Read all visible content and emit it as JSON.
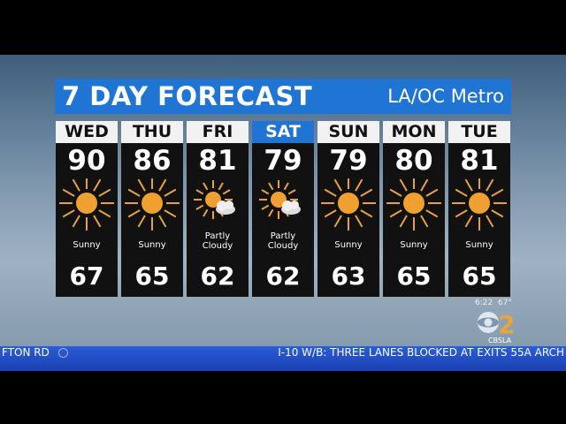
{
  "header": {
    "title": "7 DAY FORECAST",
    "region": "LA/OC Metro"
  },
  "days": [
    {
      "day": "WED",
      "high": "90",
      "low": "67",
      "condition": "Sunny",
      "icon": "sun-icon"
    },
    {
      "day": "THU",
      "high": "86",
      "low": "65",
      "condition": "Sunny",
      "icon": "sun-icon"
    },
    {
      "day": "FRI",
      "high": "81",
      "low": "62",
      "condition": "Partly Cloudy",
      "icon": "partly-cloudy-icon"
    },
    {
      "day": "SAT",
      "high": "79",
      "low": "62",
      "condition": "Partly Cloudy",
      "icon": "partly-cloudy-icon"
    },
    {
      "day": "SUN",
      "high": "79",
      "low": "63",
      "condition": "Sunny",
      "icon": "sun-icon"
    },
    {
      "day": "MON",
      "high": "80",
      "low": "65",
      "condition": "Sunny",
      "icon": "sun-icon"
    },
    {
      "day": "TUE",
      "high": "81",
      "low": "65",
      "condition": "Sunny",
      "icon": "sun-icon"
    }
  ],
  "selected_day": "SAT",
  "bug": {
    "time": "6:22",
    "temp": "67°",
    "channel": "2",
    "social": "CBSLA"
  },
  "ticker": {
    "left": "FTON RD",
    "right": "I-10 W/B: THREE LANES BLOCKED AT EXITS 55A ARCH"
  },
  "colors": {
    "accent": "#1f74d4",
    "sun": "#f0a030",
    "ticker": "#2a5ed8"
  }
}
